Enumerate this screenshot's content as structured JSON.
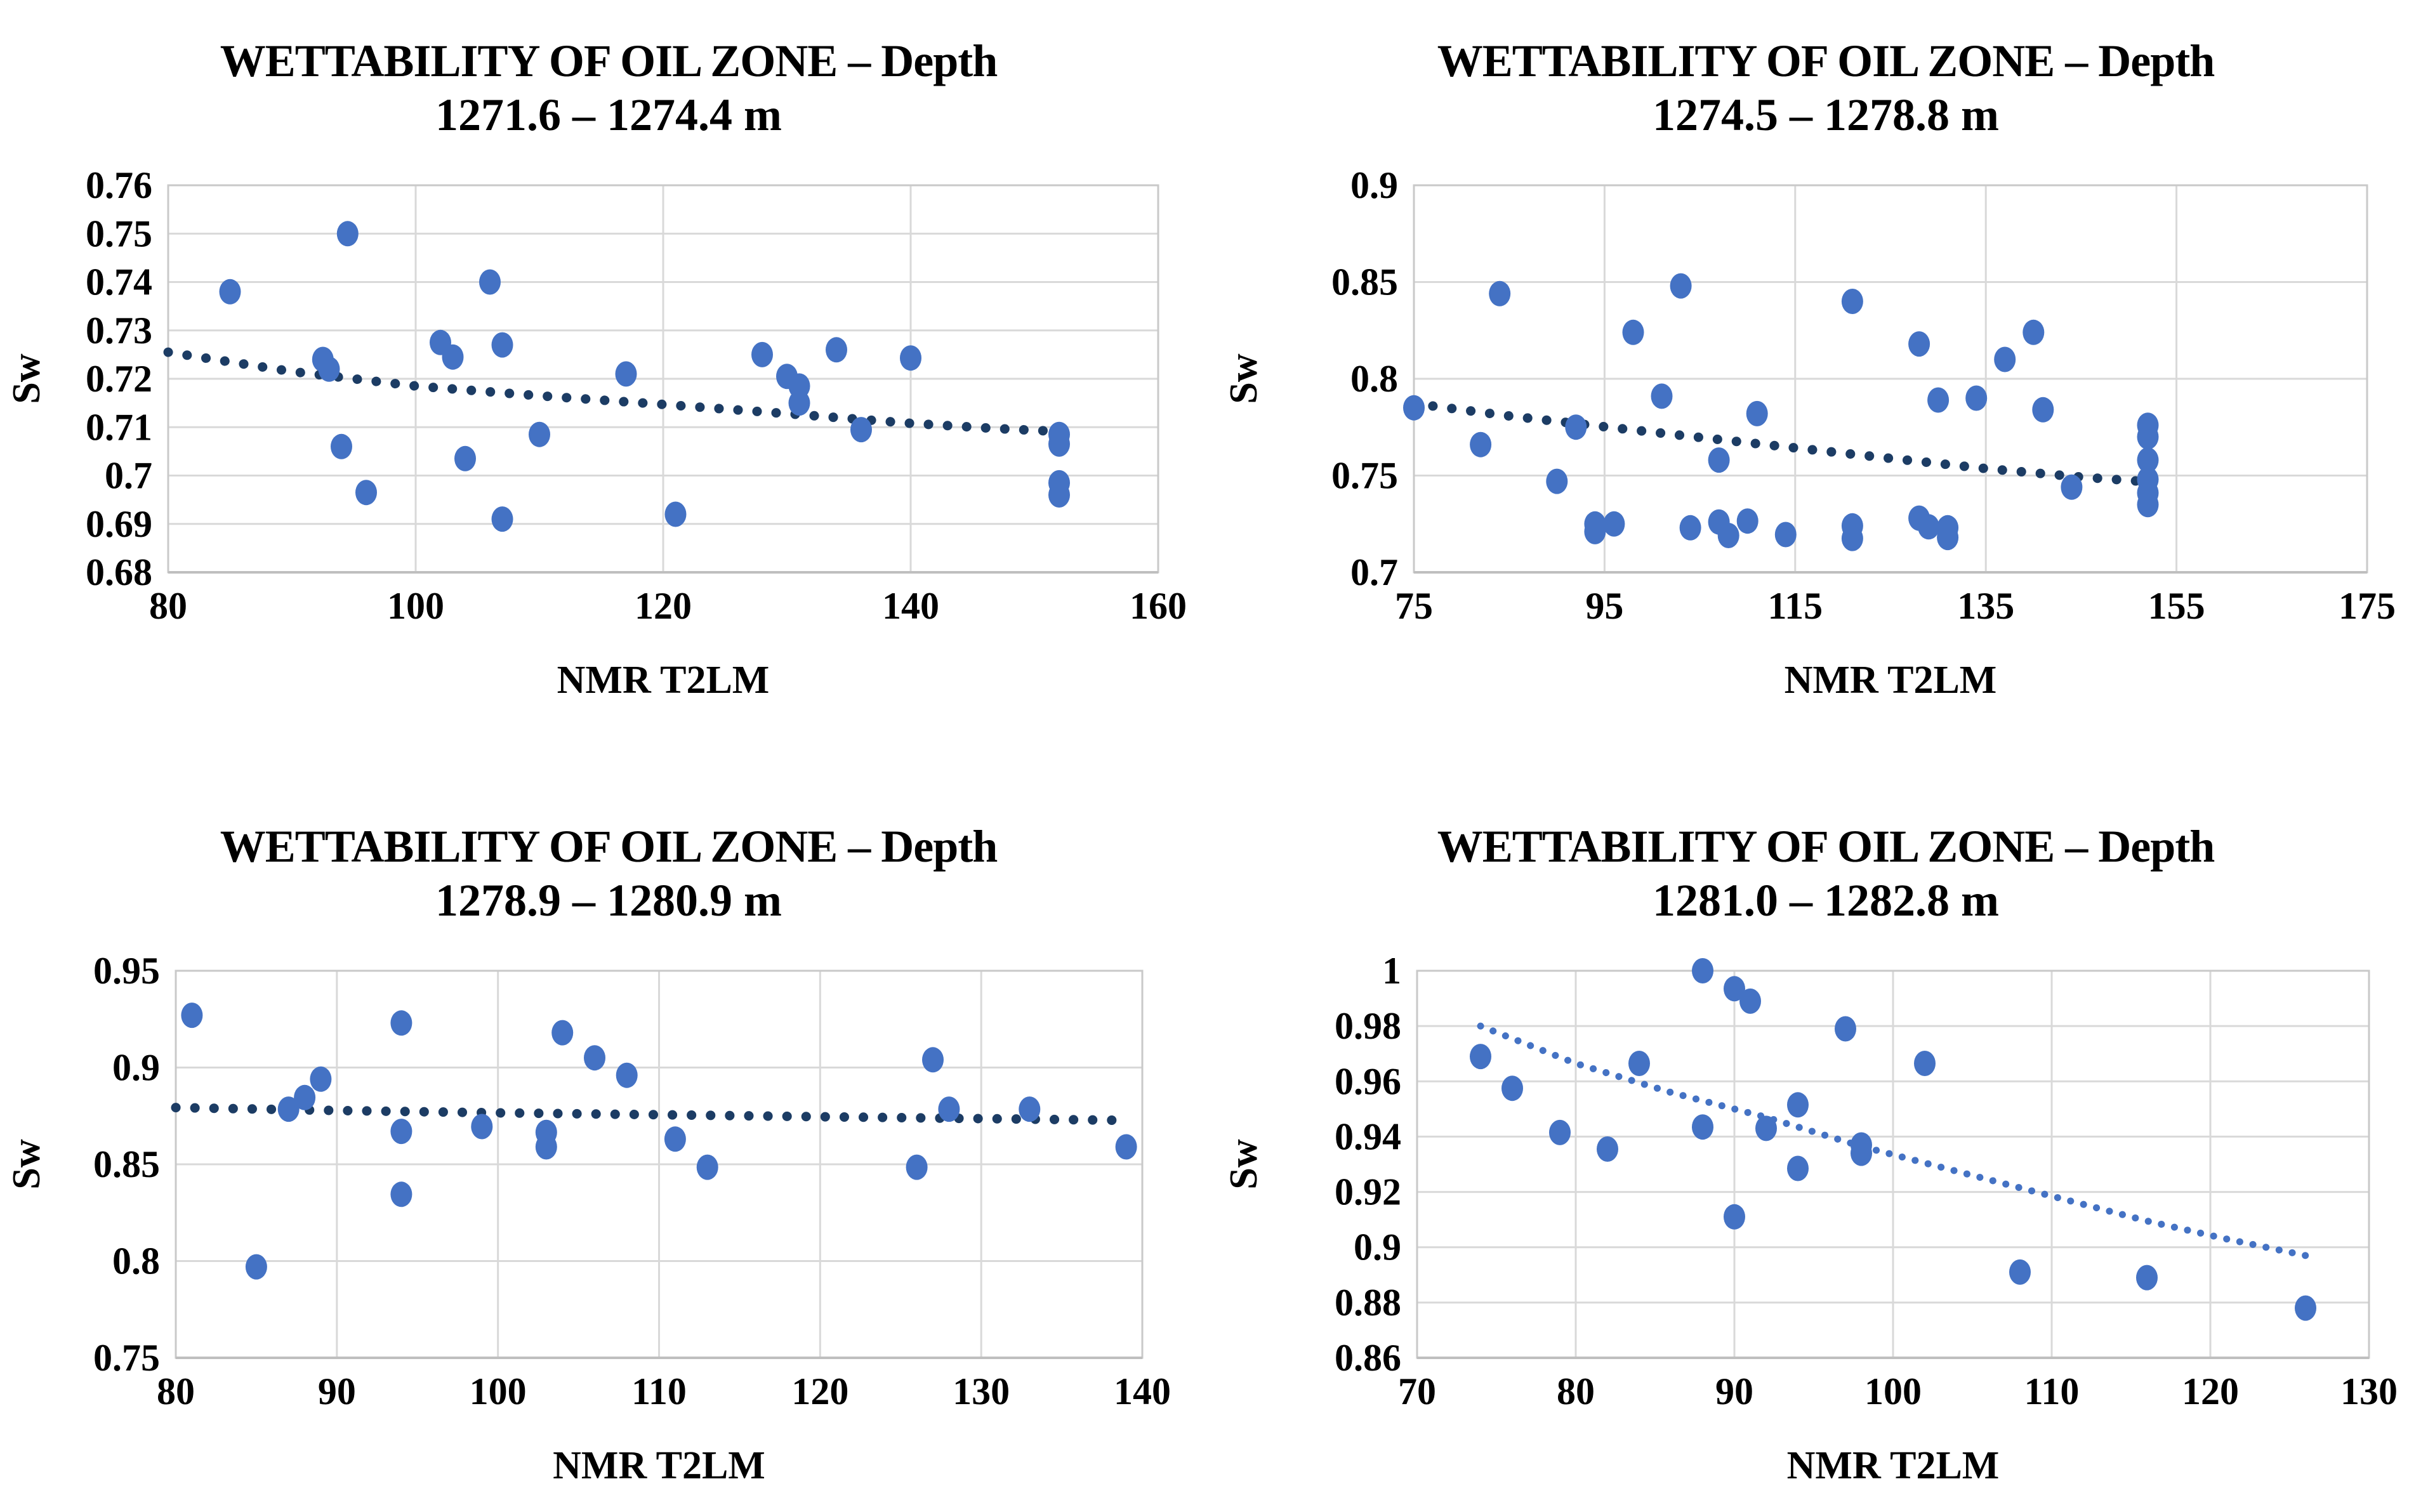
{
  "page": {
    "background": "#ffffff",
    "description": "Four Excel-style scatter charts of water saturation (Sw) versus NMR T2LM for four depth intervals of an oil zone"
  },
  "styles": {
    "point_color": "#4472c4",
    "trend_color_dark": "#1c3c64",
    "trend_color_light": "#4472c4",
    "grid_color": "#d9d9d9",
    "plot_border_color": "#c9c9c9",
    "axis_line_color": "#bfbfbf",
    "text_color": "#000000"
  },
  "chart_data": [
    {
      "type": "scatter",
      "title_line1": "WETTABILITY OF OIL ZONE – Depth",
      "title_line2": "1271.6 – 1274.4 m",
      "xlabel": "NMR T2LM",
      "ylabel": "Sw",
      "xlim": [
        80,
        160
      ],
      "ylim": [
        0.68,
        0.76
      ],
      "grid": true,
      "legend": "none",
      "xticks": [
        [
          80,
          "80"
        ],
        [
          100,
          "100"
        ],
        [
          120,
          "120"
        ],
        [
          140,
          "140"
        ],
        [
          160,
          "160"
        ]
      ],
      "yticks": [
        [
          0.68,
          "0.68"
        ],
        [
          0.69,
          "0.69"
        ],
        [
          0.7,
          "0.7"
        ],
        [
          0.71,
          "0.71"
        ],
        [
          0.72,
          "0.72"
        ],
        [
          0.73,
          "0.73"
        ],
        [
          0.74,
          "0.74"
        ],
        [
          0.75,
          "0.75"
        ],
        [
          0.76,
          "0.76"
        ]
      ],
      "points": [
        [
          85,
          0.738
        ],
        [
          94.5,
          0.75
        ],
        [
          92.5,
          0.724
        ],
        [
          93,
          0.722
        ],
        [
          94,
          0.706
        ],
        [
          96,
          0.6965
        ],
        [
          102,
          0.7275
        ],
        [
          103,
          0.7245
        ],
        [
          104,
          0.7035
        ],
        [
          106,
          0.74
        ],
        [
          107,
          0.727
        ],
        [
          107,
          0.691
        ],
        [
          110,
          0.7085
        ],
        [
          117,
          0.721
        ],
        [
          121,
          0.692
        ],
        [
          128,
          0.725
        ],
        [
          130,
          0.7205
        ],
        [
          131,
          0.7185
        ],
        [
          131,
          0.715
        ],
        [
          134,
          0.726
        ],
        [
          136,
          0.7095
        ],
        [
          140,
          0.7243
        ],
        [
          152,
          0.7085
        ],
        [
          152,
          0.7065
        ],
        [
          152,
          0.6985
        ],
        [
          152,
          0.696
        ]
      ],
      "trend": [
        [
          80,
          0.7255
        ],
        [
          90,
          0.7215
        ],
        [
          100,
          0.7185
        ],
        [
          110,
          0.7165
        ],
        [
          120,
          0.7147
        ],
        [
          130,
          0.7128
        ],
        [
          140,
          0.7108
        ],
        [
          147,
          0.7097
        ],
        [
          153,
          0.709
        ]
      ],
      "trend_style": "dark"
    },
    {
      "type": "scatter",
      "title_line1": "WETTABILITY OF OIL ZONE – Depth",
      "title_line2": "1274.5 – 1278.8 m",
      "xlabel": "NMR T2LM",
      "ylabel": "Sw",
      "xlim": [
        75,
        175
      ],
      "ylim": [
        0.7,
        0.9
      ],
      "grid": true,
      "legend": "none",
      "xticks": [
        [
          75,
          "75"
        ],
        [
          95,
          "95"
        ],
        [
          115,
          "115"
        ],
        [
          135,
          "135"
        ],
        [
          155,
          "155"
        ],
        [
          175,
          "175"
        ]
      ],
      "yticks": [
        [
          0.7,
          "0.7"
        ],
        [
          0.75,
          "0.75"
        ],
        [
          0.8,
          "0.8"
        ],
        [
          0.85,
          "0.85"
        ],
        [
          0.9,
          "0.9"
        ]
      ],
      "points": [
        [
          75,
          0.785
        ],
        [
          82,
          0.766
        ],
        [
          84,
          0.844
        ],
        [
          90,
          0.747
        ],
        [
          92,
          0.775
        ],
        [
          94,
          0.725
        ],
        [
          94,
          0.721
        ],
        [
          96,
          0.725
        ],
        [
          98,
          0.824
        ],
        [
          101,
          0.791
        ],
        [
          103,
          0.848
        ],
        [
          104,
          0.723
        ],
        [
          107,
          0.758
        ],
        [
          107,
          0.726
        ],
        [
          108,
          0.719
        ],
        [
          110,
          0.7265
        ],
        [
          111,
          0.782
        ],
        [
          114,
          0.7195
        ],
        [
          121,
          0.84
        ],
        [
          121,
          0.724
        ],
        [
          121,
          0.7175
        ],
        [
          128,
          0.818
        ],
        [
          128,
          0.728
        ],
        [
          129,
          0.7235
        ],
        [
          131,
          0.723
        ],
        [
          131,
          0.718
        ],
        [
          130,
          0.789
        ],
        [
          134,
          0.79
        ],
        [
          137,
          0.81
        ],
        [
          140,
          0.824
        ],
        [
          141,
          0.784
        ],
        [
          144,
          0.744
        ],
        [
          152,
          0.776
        ],
        [
          152,
          0.77
        ],
        [
          152,
          0.758
        ],
        [
          152,
          0.748
        ],
        [
          152,
          0.741
        ],
        [
          152,
          0.735
        ]
      ],
      "trend": [
        [
          75,
          0.7872
        ],
        [
          85,
          0.7808
        ],
        [
          95,
          0.7752
        ],
        [
          105,
          0.7697
        ],
        [
          115,
          0.7643
        ],
        [
          125,
          0.7589
        ],
        [
          135,
          0.7536
        ],
        [
          145,
          0.7492
        ],
        [
          152,
          0.7468
        ]
      ],
      "trend_style": "dark"
    },
    {
      "type": "scatter",
      "title_line1": "WETTABILITY OF OIL ZONE – Depth",
      "title_line2": "1278.9 – 1280.9 m",
      "xlabel": "NMR T2LM",
      "ylabel": "Sw",
      "xlim": [
        80,
        140
      ],
      "ylim": [
        0.75,
        0.95
      ],
      "grid": true,
      "legend": "none",
      "xticks": [
        [
          80,
          "80"
        ],
        [
          90,
          "90"
        ],
        [
          100,
          "100"
        ],
        [
          110,
          "110"
        ],
        [
          120,
          "120"
        ],
        [
          130,
          "130"
        ],
        [
          140,
          "140"
        ]
      ],
      "yticks": [
        [
          0.75,
          "0.75"
        ],
        [
          0.8,
          "0.8"
        ],
        [
          0.85,
          "0.85"
        ],
        [
          0.9,
          "0.9"
        ],
        [
          0.95,
          "0.95"
        ]
      ],
      "points": [
        [
          81,
          0.927
        ],
        [
          85,
          0.797
        ],
        [
          87,
          0.8785
        ],
        [
          88,
          0.8845
        ],
        [
          89,
          0.894
        ],
        [
          94,
          0.923
        ],
        [
          94,
          0.867
        ],
        [
          94,
          0.8345
        ],
        [
          99,
          0.8695
        ],
        [
          103,
          0.8665
        ],
        [
          103,
          0.859
        ],
        [
          104,
          0.918
        ],
        [
          106,
          0.905
        ],
        [
          108,
          0.896
        ],
        [
          111,
          0.863
        ],
        [
          113,
          0.8485
        ],
        [
          126,
          0.8485
        ],
        [
          127,
          0.904
        ],
        [
          128,
          0.8785
        ],
        [
          133,
          0.8785
        ],
        [
          139,
          0.859
        ]
      ],
      "trend": [
        [
          80,
          0.8793
        ],
        [
          90,
          0.8778
        ],
        [
          100,
          0.8766
        ],
        [
          110,
          0.8756
        ],
        [
          120,
          0.8746
        ],
        [
          130,
          0.8736
        ],
        [
          139,
          0.8727
        ]
      ],
      "trend_style": "dark"
    },
    {
      "type": "scatter",
      "title_line1": "WETTABILITY OF OIL ZONE – Depth",
      "title_line2": "1281.0 – 1282.8 m",
      "xlabel": "NMR T2LM",
      "ylabel": "Sw",
      "xlim": [
        70,
        130
      ],
      "ylim": [
        0.86,
        1.0
      ],
      "grid": true,
      "legend": "none",
      "xticks": [
        [
          70,
          "70"
        ],
        [
          80,
          "80"
        ],
        [
          90,
          "90"
        ],
        [
          100,
          "100"
        ],
        [
          110,
          "110"
        ],
        [
          120,
          "120"
        ],
        [
          130,
          "130"
        ]
      ],
      "yticks": [
        [
          0.86,
          "0.86"
        ],
        [
          0.88,
          "0.88"
        ],
        [
          0.9,
          "0.9"
        ],
        [
          0.92,
          "0.92"
        ],
        [
          0.94,
          "0.94"
        ],
        [
          0.96,
          "0.96"
        ],
        [
          0.98,
          "0.98"
        ],
        [
          1.0,
          "1"
        ]
      ],
      "points": [
        [
          74,
          0.969
        ],
        [
          76,
          0.9575
        ],
        [
          79,
          0.9415
        ],
        [
          82,
          0.9355
        ],
        [
          84,
          0.9665
        ],
        [
          88,
          1.0
        ],
        [
          88,
          0.9435
        ],
        [
          90,
          0.9935
        ],
        [
          90,
          0.911
        ],
        [
          91,
          0.989
        ],
        [
          92,
          0.943
        ],
        [
          94,
          0.9515
        ],
        [
          94,
          0.9285
        ],
        [
          97,
          0.979
        ],
        [
          98,
          0.937
        ],
        [
          98,
          0.934
        ],
        [
          102,
          0.9665
        ],
        [
          108,
          0.891
        ],
        [
          116,
          0.889
        ],
        [
          126,
          0.878
        ]
      ],
      "trend": [
        [
          74,
          0.98
        ],
        [
          80,
          0.9665
        ],
        [
          86,
          0.956
        ],
        [
          92,
          0.947
        ],
        [
          98,
          0.9365
        ],
        [
          104,
          0.9275
        ],
        [
          110,
          0.9185
        ],
        [
          116,
          0.9095
        ],
        [
          121,
          0.903
        ],
        [
          126,
          0.897
        ]
      ],
      "trend_style": "light"
    }
  ]
}
